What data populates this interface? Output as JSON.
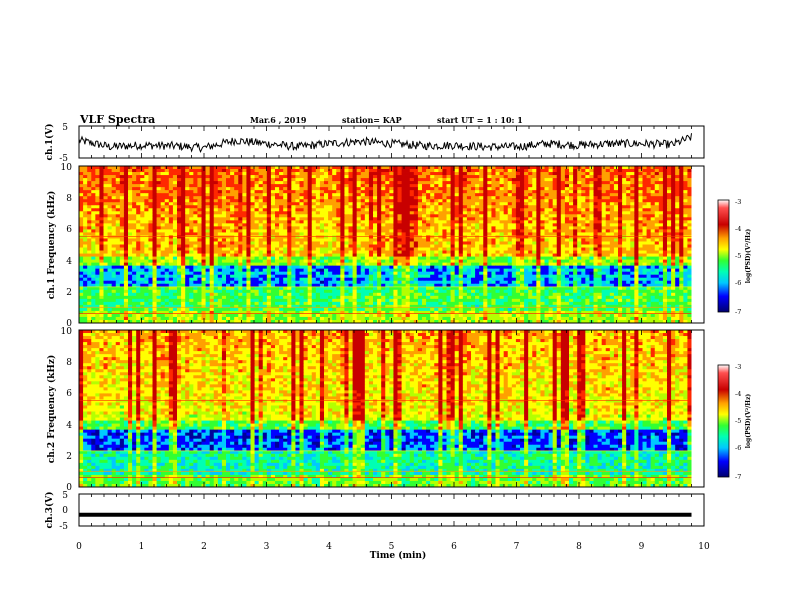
{
  "header": {
    "title": "VLF Spectra",
    "date": "Mar.6  , 2019",
    "station": "station= KAP",
    "start_ut": "start  UT =  1 : 10: 1"
  },
  "colors": {
    "spectrum_scale": [
      "#00009b",
      "#0000ff",
      "#00c8ff",
      "#00ffb4",
      "#32ff32",
      "#b4ff00",
      "#ffff00",
      "#ffa000",
      "#ff2800",
      "#c80000",
      "#ffffff"
    ],
    "trace": "#000000"
  },
  "chart_data": [
    {
      "type": "line",
      "panel": "ch1-voltage",
      "ylabel": "ch.1(V)",
      "ylim": [
        -5,
        5
      ],
      "yticks": [
        "5",
        "-5"
      ],
      "xlim": [
        0,
        10
      ],
      "note_series": "noisy waveform fluctuating roughly between -3 and 3 V over 0 to 9.8 min",
      "x": [
        0,
        0.5,
        1,
        1.5,
        2,
        2.5,
        3,
        3.5,
        4,
        4.5,
        5,
        5.5,
        6,
        6.5,
        7,
        7.5,
        8,
        8.5,
        9,
        9.5,
        9.8
      ],
      "y": [
        0.5,
        -1.5,
        -1,
        -1.2,
        -1.8,
        0.5,
        -0.5,
        -1.5,
        -0.5,
        0.2,
        -0.5,
        -1.2,
        -1,
        -1.5,
        -1.5,
        -0.5,
        -1,
        -0.5,
        -0.5,
        -0.8,
        1.5
      ]
    },
    {
      "type": "heatmap",
      "panel": "ch1-spectrogram",
      "ylabel": "ch.1 Frequency (kHz)",
      "ylim": [
        0,
        10
      ],
      "yticks": [
        "0",
        "2",
        "4",
        "6",
        "8",
        "10"
      ],
      "xlim": [
        0,
        10
      ],
      "data_end_min": 9.8,
      "colorbar": {
        "title": "log(PSD)(V²/Hz)",
        "range": [
          -7,
          -3
        ],
        "ticks": [
          "-3",
          "-4",
          "-5",
          "-6",
          "-7"
        ]
      },
      "description": "high power (red/orange) above 4 kHz with vertical bursts; low power (blue) band near 2.5-3.5 kHz; narrow lines near 5.5 and 0.5 kHz"
    },
    {
      "type": "heatmap",
      "panel": "ch2-spectrogram",
      "ylabel": "ch.2 Frequency (kHz)",
      "ylim": [
        0,
        10
      ],
      "yticks": [
        "0",
        "2",
        "4",
        "6",
        "8",
        "10"
      ],
      "xlim": [
        0,
        10
      ],
      "data_end_min": 9.8,
      "colorbar": {
        "title": "log(PSD)(V²/Hz)",
        "range": [
          -7,
          -3
        ],
        "ticks": [
          "-3",
          "-4",
          "-5",
          "-6",
          "-7"
        ]
      },
      "description": "similar structure to ch.1, overall slightly lower power; blue band near 2-3.5 kHz"
    },
    {
      "type": "line",
      "panel": "ch3-voltage",
      "ylabel": "ch.3(V)",
      "ylim": [
        -5,
        5
      ],
      "yticks": [
        "5",
        "0",
        "-5"
      ],
      "xlim": [
        0,
        10
      ],
      "x": [
        0,
        9.8
      ],
      "y": [
        -1.5,
        -1.5
      ]
    }
  ],
  "xaxis": {
    "label": "Time  (min)",
    "ticks": [
      "0",
      "1",
      "2",
      "3",
      "4",
      "5",
      "6",
      "7",
      "8",
      "9",
      "10"
    ]
  }
}
